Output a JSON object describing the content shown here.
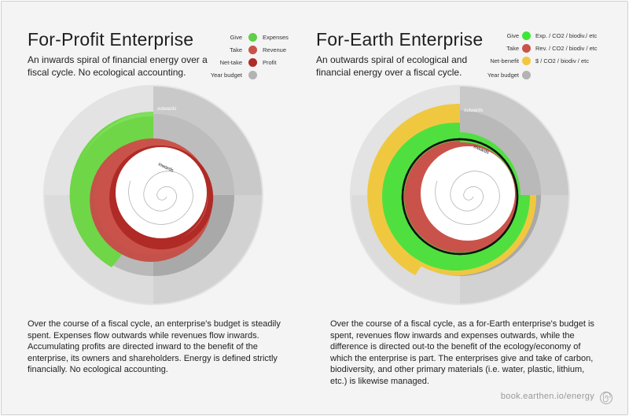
{
  "left": {
    "title": "For-Profit Enterprise",
    "subtitle": "An inwards spiral of financial energy over a fiscal cycle.  No ecological accounting.",
    "legend": [
      {
        "label": "Give",
        "text": "Expenses",
        "color": "#5fcf45"
      },
      {
        "label": "Take",
        "text": "Revenue",
        "color": "#c9534a"
      },
      {
        "label": "Net-take",
        "text": "Profit",
        "color": "#b02a26"
      },
      {
        "label": "Year budget",
        "text": "",
        "color": "#b3b3b3"
      }
    ],
    "diagram": {
      "outer_label": "outwards",
      "inner_label": "inwards"
    },
    "body": "Over the course of a fiscal cycle, an enterprise's budget is steadily spent. Expenses flow outwards while revenues flow inwards.  Accumulating profits are directed inward to the benefit of the enterprise, its owners and shareholders.  Energy is defined strictly financially.  No ecological accounting."
  },
  "right": {
    "title": "For-Earth Enterprise",
    "subtitle": "An outwards spiral of ecological and financial energy over a fiscal cycle.",
    "legend": [
      {
        "label": "Give",
        "text": "Exp. / CO2 / biodiv./ etc",
        "color": "#3fe63a"
      },
      {
        "label": "Take",
        "text": "Rev. / CO2 / biodiv / etc",
        "color": "#c9534a"
      },
      {
        "label": "Net-benefit",
        "text": "$ / CO2 / biodiv / etc",
        "color": "#f0c840"
      },
      {
        "label": "Year budget",
        "text": "",
        "color": "#b3b3b3"
      }
    ],
    "diagram": {
      "outer_label": "outwards",
      "inner_label": "inwards"
    },
    "body": "Over the course of a fiscal cycle, as a for-Earth enterprise's budget is spent, revenues flow inwards and expenses outwards, while the difference is directed out-to the benefit of the ecology/economy of which the enterprise is part.  The enterprises give and take of carbon, biodiversity, and other primary materials (i.e. water, plastic, lithium, etc.) is likewise managed."
  },
  "footer": {
    "url": "book.earthen.io/energy",
    "icon": "spiral-icon"
  }
}
